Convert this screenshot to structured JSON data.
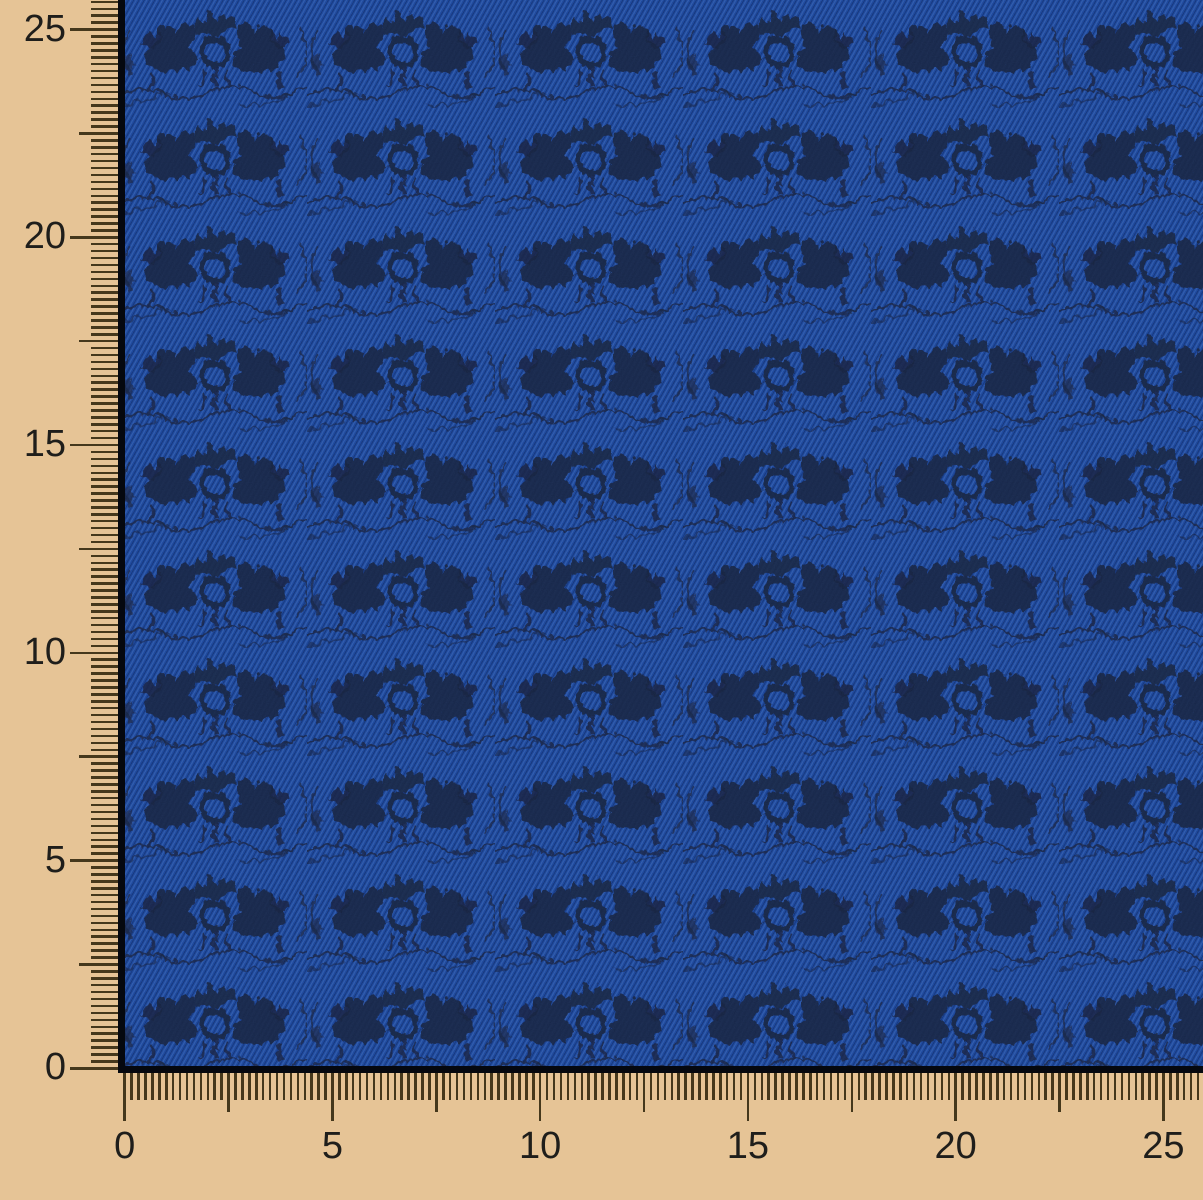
{
  "image": {
    "alt": "Royal blue jacquard fabric swatch with dark navy ornamental motif rows, measured by rulers along the left and bottom edges"
  },
  "rulers": {
    "major_step": 5,
    "minor_ticks_between_majors": 30,
    "half_interval_tick": true,
    "left": {
      "labels": [
        "25",
        "20",
        "15",
        "10",
        "5",
        "0"
      ],
      "values": [
        25,
        20,
        15,
        10,
        5,
        0
      ]
    },
    "bottom": {
      "labels": [
        "0",
        "5",
        "10",
        "15",
        "20",
        "25"
      ],
      "values": [
        0,
        5,
        10,
        15,
        20,
        25
      ]
    }
  },
  "colors": {
    "background": "#e6c496",
    "tick": "#45381c",
    "label": "#1f1e1b",
    "fabric_base": "#1d4aa4",
    "fabric_twill_light": "rgba(125,168,236,0.22)",
    "fabric_twill_dark": "rgba(6,16,50,0.30)",
    "fabric_motif": "#1a2240",
    "fabric_edge": "#05080f"
  }
}
